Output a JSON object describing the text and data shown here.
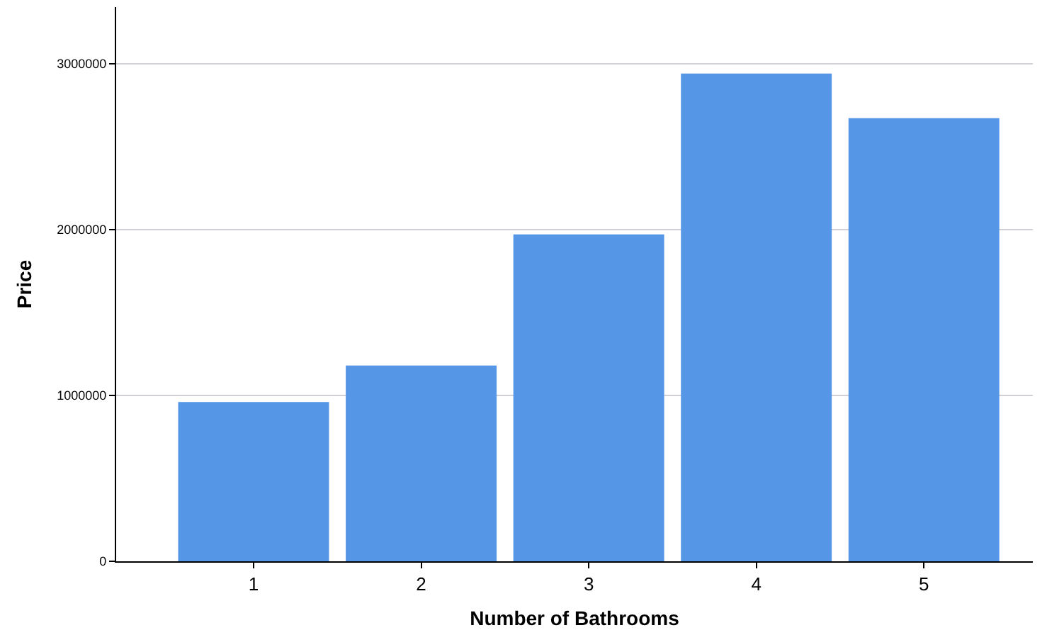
{
  "chart_data": {
    "type": "bar",
    "xlabel": "Number of Bathrooms",
    "ylabel": "Price",
    "categories": [
      "1",
      "2",
      "3",
      "4",
      "5"
    ],
    "values": [
      960000,
      1180000,
      1970000,
      2940000,
      2670000
    ],
    "color": "#5596e6",
    "ylim": [
      0,
      3340000
    ],
    "yticks": [
      0,
      1000000,
      2000000,
      3000000
    ],
    "grid": "y"
  }
}
